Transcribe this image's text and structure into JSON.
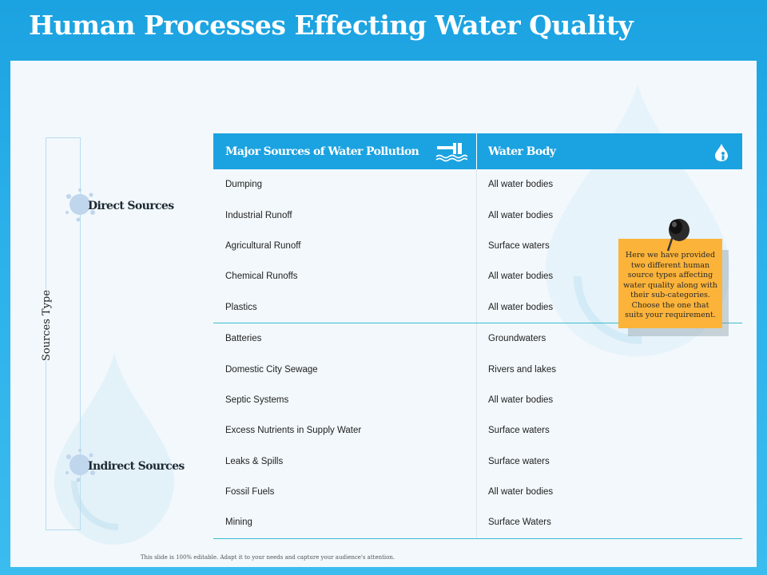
{
  "title": "Human Processes Effecting Water Quality",
  "axis_label": "Sources Type",
  "categories": {
    "direct": "Direct Sources",
    "indirect": "Indirect Sources"
  },
  "table": {
    "headers": [
      "Major Sources of Water Pollution",
      "Water Body"
    ],
    "direct_rows": [
      [
        "Dumping",
        "All water bodies"
      ],
      [
        "Industrial Runoff",
        "All water bodies"
      ],
      [
        "Agricultural Runoff",
        "Surface waters"
      ],
      [
        "Chemical Runoffs",
        "All water bodies"
      ],
      [
        "Plastics",
        "All water bodies"
      ]
    ],
    "indirect_rows": [
      [
        "Batteries",
        "Groundwaters"
      ],
      [
        "Domestic City Sewage",
        "Rivers and lakes"
      ],
      [
        "Septic Systems",
        "All water bodies"
      ],
      [
        "Excess Nutrients in Supply Water",
        "Surface waters"
      ],
      [
        "Leaks & Spills",
        "Surface waters"
      ],
      [
        "Fossil Fuels",
        "All water bodies"
      ],
      [
        "Mining",
        "Surface Waters"
      ]
    ]
  },
  "note": "Here we have provided two different human source types affecting water quality along with their sub-categories. Choose the one that suits your requirement.",
  "footer": "This slide is 100% editable. Adapt it to your needs and capture your audience's attention.",
  "icons": {
    "header1": "factory-pipe-icon",
    "header2": "water-drop-person-icon",
    "pin": "push-pin-icon"
  },
  "colors": {
    "accent": "#1ba2e0",
    "note": "#fbb33a",
    "divider": "#3bbccf"
  }
}
